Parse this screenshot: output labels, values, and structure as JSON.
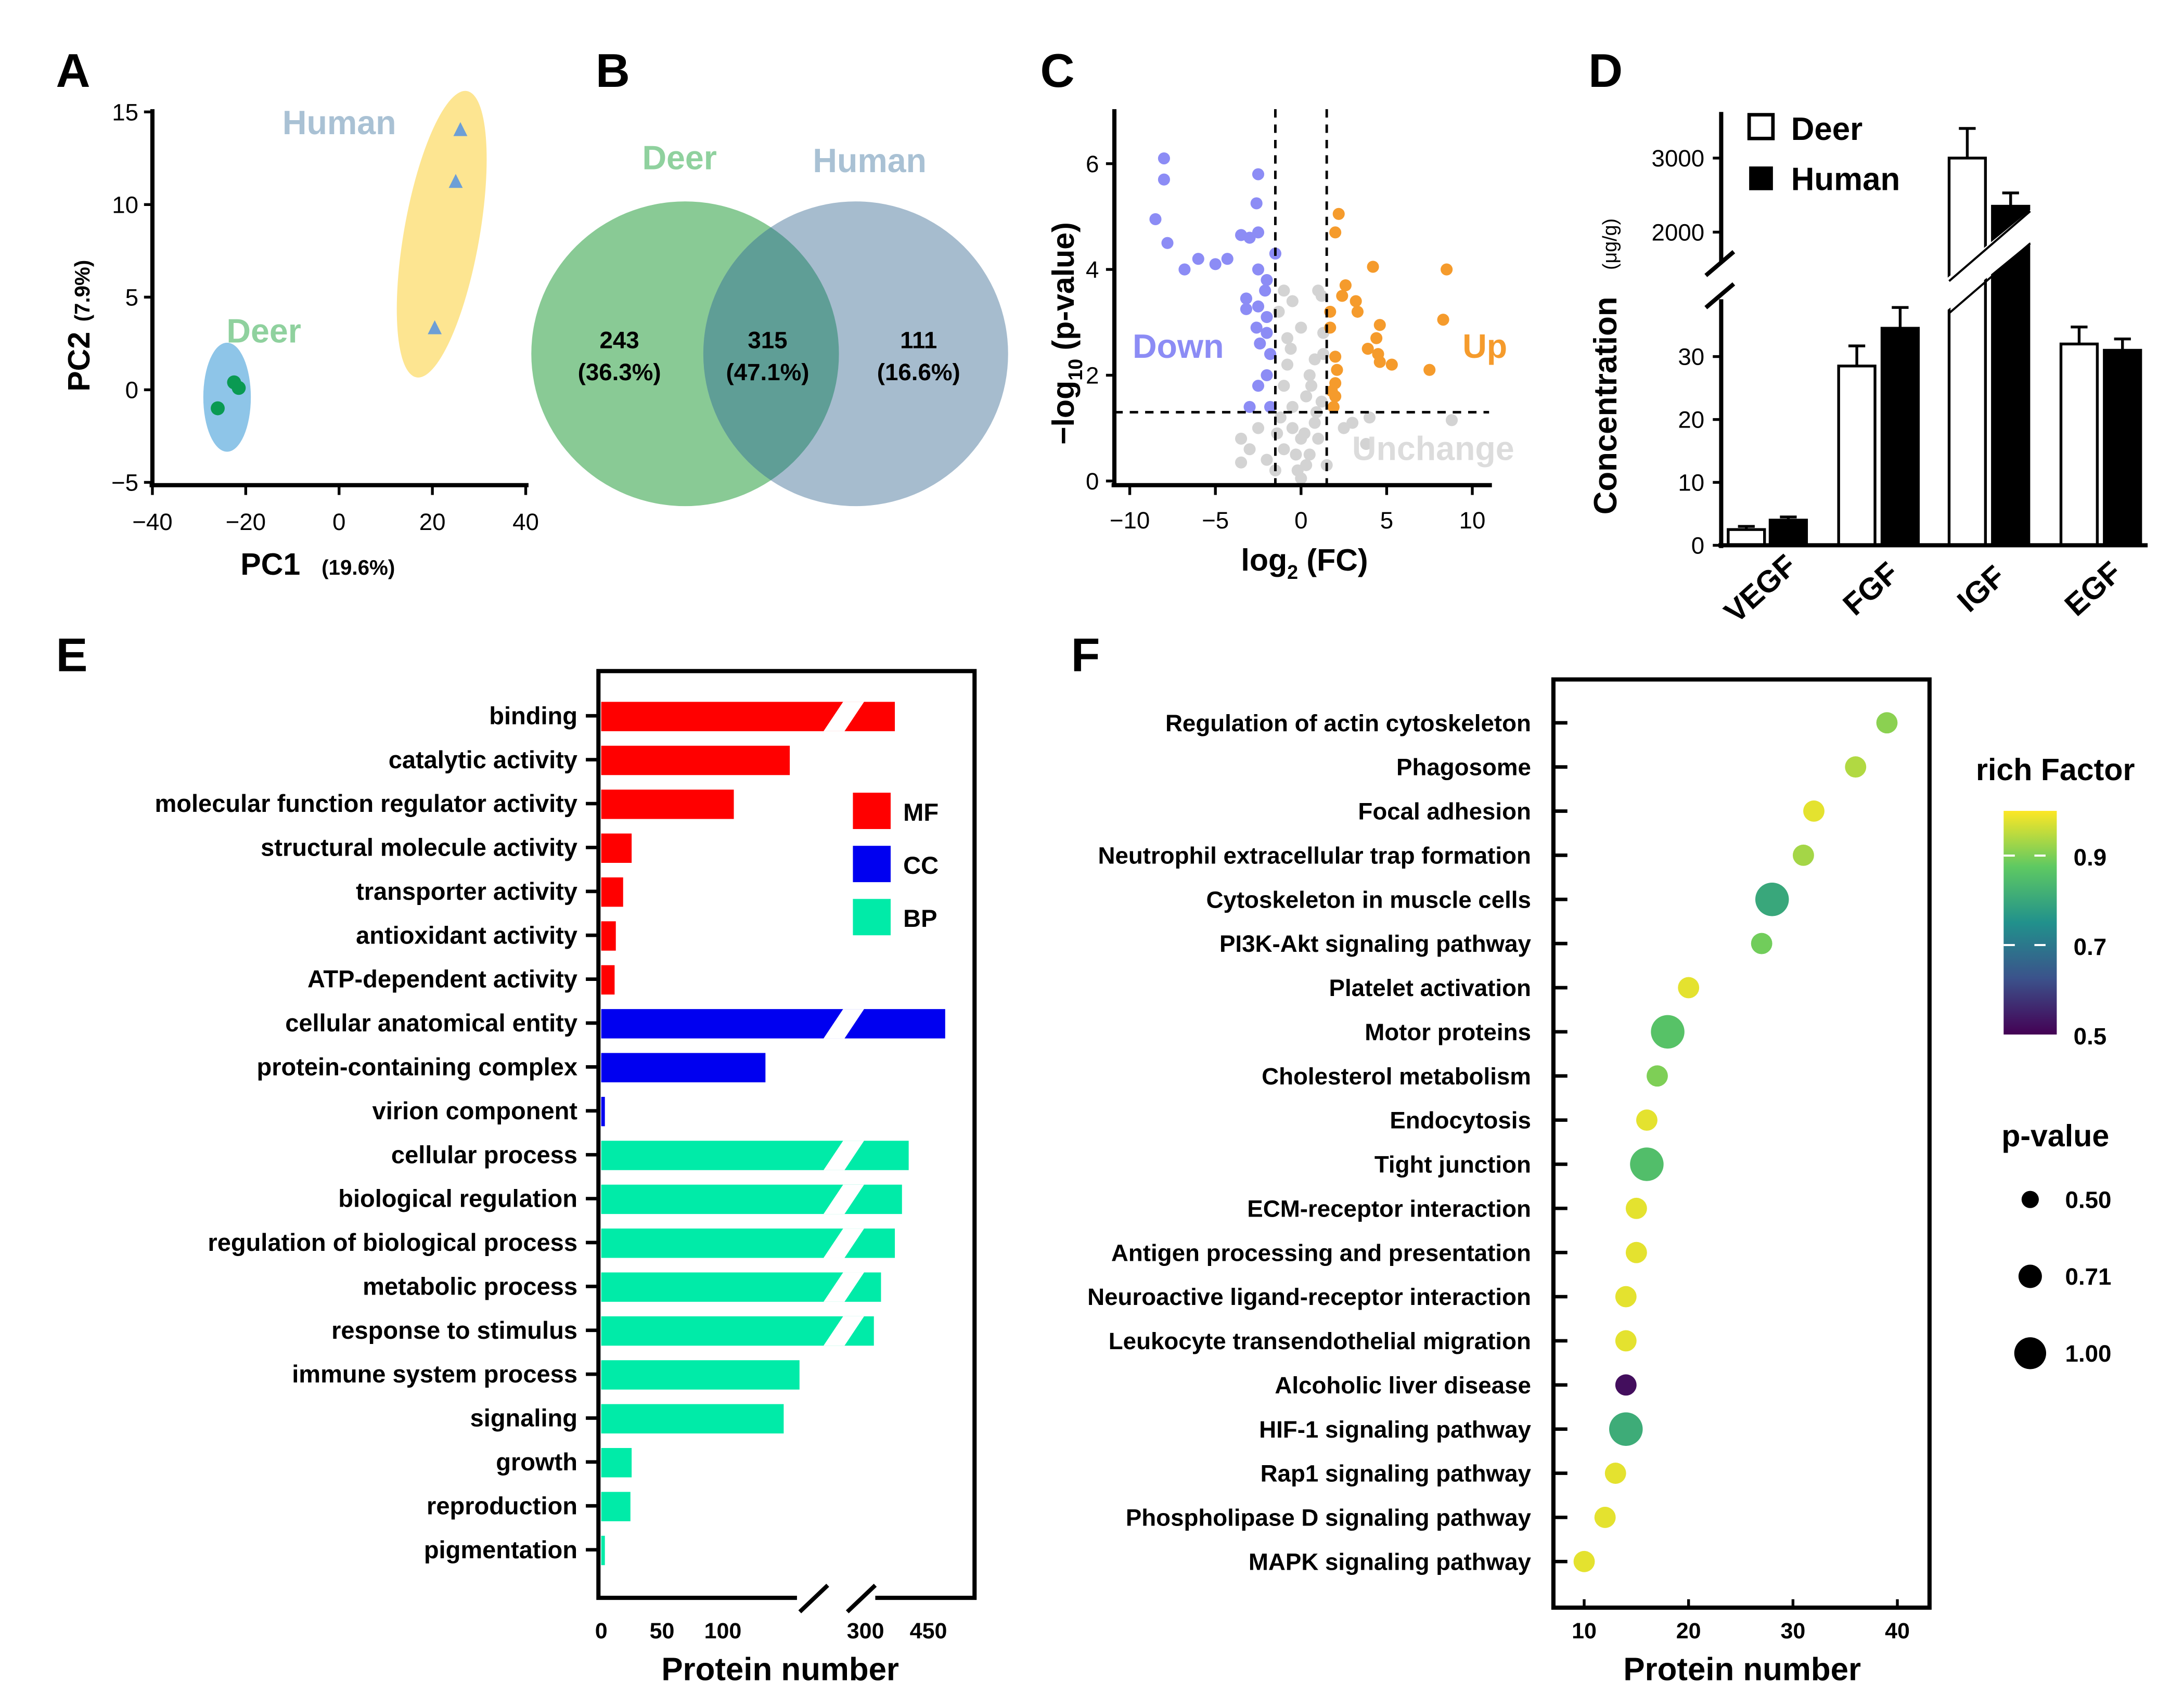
{
  "panel_letters": [
    "A",
    "B",
    "C",
    "D",
    "E",
    "F"
  ],
  "chart_data": [
    {
      "panel": "A",
      "type": "scatter",
      "xlabel": "PC1",
      "xlabel_pct": "(19.6%)",
      "ylabel": "PC2",
      "ylabel_pct": "(7.9%)",
      "xlim": [
        -40,
        40
      ],
      "ylim": [
        -5,
        15
      ],
      "xticks": [
        "-40",
        "-20",
        "0",
        "20",
        "40"
      ],
      "yticks": [
        "-5",
        "0",
        "5",
        "10",
        "15"
      ],
      "groups": [
        {
          "name": "Deer",
          "label_color": "#8fd19e",
          "marker": "circle",
          "marker_color": "#0a9a52",
          "ellipse_color": "#8ec5e8",
          "points": [
            [
              -22.5,
              0.4
            ],
            [
              -21.5,
              0.1
            ],
            [
              -26,
              -1.0
            ]
          ]
        },
        {
          "name": "Human",
          "label_color": "#a9c1d4",
          "marker": "triangle",
          "marker_color": "#6d9fd6",
          "ellipse_color": "#fde591",
          "points": [
            [
              26,
              14.0
            ],
            [
              25,
              11.2
            ],
            [
              20.5,
              3.3
            ]
          ]
        }
      ]
    },
    {
      "panel": "B",
      "type": "venn",
      "sets": [
        {
          "name": "Deer",
          "color": "#7cc48a",
          "label_color": "#8fd19e"
        },
        {
          "name": "Human",
          "color": "#97b0c6",
          "label_color": "#a9c1d4"
        }
      ],
      "regions": [
        {
          "label": "Deer only",
          "count": "243",
          "pct": "(36.3%)"
        },
        {
          "label": "Shared",
          "count": "315",
          "pct": "(47.1%)"
        },
        {
          "label": "Human only",
          "count": "111",
          "pct": "(16.6%)"
        }
      ]
    },
    {
      "panel": "C",
      "type": "scatter",
      "xlabel": "log2 (FC)",
      "ylabel": "-log10 (p-value)",
      "xlim": [
        -11,
        11
      ],
      "ylim": [
        0,
        7
      ],
      "xticks": [
        "-10",
        "-5",
        "0",
        "5",
        "10"
      ],
      "yticks": [
        "0",
        "2",
        "4",
        "6"
      ],
      "thresholds": {
        "log2fc": 1.5,
        "neg_log10_p": 1.3
      },
      "series": [
        {
          "name": "Down",
          "color": "#8c8cf5",
          "points": [
            [
              -8,
              6.1
            ],
            [
              -8,
              5.7
            ],
            [
              -8.5,
              4.95
            ],
            [
              -7.8,
              4.5
            ],
            [
              -6.8,
              4.0
            ],
            [
              -6,
              4.2
            ],
            [
              -5,
              4.1
            ],
            [
              -4.3,
              4.2
            ],
            [
              -3.5,
              4.65
            ],
            [
              -3,
              4.6
            ],
            [
              -2.5,
              4.7
            ],
            [
              -2.5,
              5.8
            ],
            [
              -2.6,
              5.25
            ],
            [
              -1.5,
              4.3
            ],
            [
              -2.5,
              4.0
            ],
            [
              -2,
              3.8
            ],
            [
              -2.1,
              3.6
            ],
            [
              -3.2,
              3.45
            ],
            [
              -3.2,
              3.25
            ],
            [
              -2.5,
              3.3
            ],
            [
              -2,
              3.1
            ],
            [
              -2.6,
              2.9
            ],
            [
              -2,
              2.8
            ],
            [
              -2.4,
              2.6
            ],
            [
              -1.8,
              2.4
            ],
            [
              -2,
              2.0
            ],
            [
              -2.5,
              1.8
            ],
            [
              -3,
              1.4
            ],
            [
              -1.8,
              1.4
            ]
          ]
        },
        {
          "name": "Up",
          "color": "#f59b2c",
          "points": [
            [
              2.2,
              5.05
            ],
            [
              2,
              4.7
            ],
            [
              4.2,
              4.05
            ],
            [
              8.5,
              4.0
            ],
            [
              2.6,
              3.7
            ],
            [
              2.4,
              3.5
            ],
            [
              3.2,
              3.4
            ],
            [
              3.3,
              3.2
            ],
            [
              1.7,
              3.2
            ],
            [
              8.3,
              3.05
            ],
            [
              4.6,
              2.95
            ],
            [
              1.7,
              2.9
            ],
            [
              4.4,
              2.7
            ],
            [
              3.9,
              2.5
            ],
            [
              4.5,
              2.4
            ],
            [
              4.6,
              2.25
            ],
            [
              5.3,
              2.2
            ],
            [
              7.5,
              2.1
            ],
            [
              2,
              2.35
            ],
            [
              2.1,
              2.1
            ],
            [
              2,
              1.85
            ],
            [
              2,
              1.6
            ],
            [
              1.9,
              1.4
            ],
            [
              1.8,
              1.7
            ]
          ]
        },
        {
          "name": "Unchange",
          "color": "#d3d3d3",
          "points": [
            [
              -1,
              3.6
            ],
            [
              -0.5,
              3.4
            ],
            [
              -1.3,
              3.2
            ],
            [
              0,
              2.9
            ],
            [
              -0.8,
              2.7
            ],
            [
              1.3,
              2.8
            ],
            [
              1,
              3.6
            ],
            [
              1.3,
              2.4
            ],
            [
              -0.8,
              2.2
            ],
            [
              0.5,
              2.0
            ],
            [
              -1,
              1.8
            ],
            [
              0.3,
              1.6
            ],
            [
              1.2,
              1.5
            ],
            [
              0.8,
              1.1
            ],
            [
              -0.5,
              1.0
            ],
            [
              0,
              0.8
            ],
            [
              0.5,
              0.5
            ],
            [
              -0.2,
              0.2
            ],
            [
              0,
              0.05
            ],
            [
              0.3,
              0.3
            ],
            [
              -1,
              0.6
            ],
            [
              1,
              0.8
            ],
            [
              -3.5,
              0.8
            ],
            [
              -3.5,
              0.35
            ],
            [
              -2.5,
              1.0
            ],
            [
              -3,
              0.6
            ],
            [
              -2,
              0.4
            ],
            [
              2.5,
              1.0
            ],
            [
              3,
              1.1
            ],
            [
              4,
              1.2
            ],
            [
              3.8,
              0.7
            ],
            [
              8.8,
              1.15
            ],
            [
              -1.5,
              0.2
            ],
            [
              1.5,
              0.3
            ],
            [
              -0.5,
              1.4
            ],
            [
              0.8,
              2.3
            ],
            [
              -1.2,
              1.2
            ],
            [
              0.2,
              0.9
            ],
            [
              -0.3,
              0.5
            ],
            [
              0.6,
              1.8
            ],
            [
              1.2,
              3.5
            ],
            [
              -0.6,
              2.5
            ],
            [
              0.9,
              1.3
            ],
            [
              -1.4,
              0.9
            ]
          ]
        }
      ]
    },
    {
      "panel": "D",
      "type": "bar",
      "ylabel": "Concentration",
      "yunit": "(μg/g)",
      "categories": [
        "VEGF",
        "FGF",
        "IGF",
        "EGF"
      ],
      "yticks_lower": [
        "0",
        "10",
        "20",
        "30"
      ],
      "yticks_upper": [
        "2000",
        "3000"
      ],
      "axis_break": [
        37,
        1400
      ],
      "series": [
        {
          "name": "Deer",
          "color": "#ffffff",
          "values": [
            2.5,
            28.5,
            3000,
            32
          ],
          "errors": [
            0.5,
            3.2,
            400,
            2.7
          ]
        },
        {
          "name": "Human",
          "color": "#000000",
          "values": [
            4,
            34.5,
            2350,
            31
          ],
          "errors": [
            0.5,
            3.3,
            180,
            1.8
          ]
        }
      ]
    },
    {
      "panel": "E",
      "type": "bar",
      "orientation": "horizontal",
      "xlabel": "Protein number",
      "xticks": [
        "0",
        "50",
        "100",
        "300",
        "450"
      ],
      "axis_break": [
        170,
        250
      ],
      "legend": [
        {
          "name": "MF",
          "color": "#ff0000"
        },
        {
          "name": "CC",
          "color": "#0000f0"
        },
        {
          "name": "BP",
          "color": "#00eba8"
        }
      ],
      "categories": [
        "binding",
        "catalytic activity",
        "molecular function regulator activity",
        "structural molecule activity",
        "transporter activity",
        "antioxidant activity",
        "ATP-dependent activity",
        "cellular anatomical entity",
        "protein-containing complex",
        "virion component",
        "cellular process",
        "biological regulation",
        "regulation of biological process",
        "metabolic process",
        "response to stimulus",
        "immune system process",
        "signaling",
        "growth",
        "reproduction",
        "pigmentation"
      ],
      "groups": [
        "MF",
        "MF",
        "MF",
        "MF",
        "MF",
        "MF",
        "MF",
        "CC",
        "CC",
        "CC",
        "BP",
        "BP",
        "BP",
        "BP",
        "BP",
        "BP",
        "BP",
        "BP",
        "BP",
        "BP"
      ],
      "values": [
        370,
        155,
        109,
        25,
        18,
        12,
        11,
        490,
        135,
        3,
        403,
        387,
        370,
        337,
        320,
        163,
        150,
        25,
        24,
        3
      ]
    },
    {
      "panel": "F",
      "type": "scatter",
      "subtype": "bubble",
      "xlabel": "Protein number",
      "xlim": [
        7,
        43
      ],
      "xticks": [
        "10",
        "20",
        "30",
        "40"
      ],
      "color_legend_title": "rich Factor",
      "color_ticks": [
        "0.9",
        "0.7",
        "0.5"
      ],
      "size_legend_title": "p-value",
      "size_ticks": [
        "0.50",
        "0.71",
        "1.00"
      ],
      "categories": [
        "Regulation of actin cytoskeleton",
        "Phagosome",
        "Focal adhesion",
        "Neutrophil extracellular trap formation",
        "Cytoskeleton in muscle cells",
        "PI3K-Akt signaling pathway",
        "Platelet activation",
        "Motor proteins",
        "Cholesterol metabolism",
        "Endocytosis",
        "Tight junction",
        "ECM-receptor interaction",
        "Antigen processing and presentation",
        "Neuroactive ligand-receptor interaction",
        "Leukocyte transendothelial migration",
        "Alcoholic liver disease",
        "HIF-1 signaling pathway",
        "Rap1 signaling pathway",
        "Phospholipase D signaling pathway",
        "MAPK signaling pathway"
      ],
      "protein_number": [
        39,
        36,
        32,
        31,
        28,
        27,
        20,
        18,
        17,
        16,
        16,
        15,
        15,
        14,
        14,
        14,
        14,
        13,
        12,
        10
      ],
      "rich_factor": [
        0.91,
        0.94,
        0.98,
        0.93,
        0.8,
        0.89,
        0.98,
        0.86,
        0.9,
        0.98,
        0.85,
        0.98,
        0.98,
        0.98,
        0.98,
        0.52,
        0.81,
        0.98,
        0.98,
        0.98
      ],
      "p_value": [
        0.6,
        0.6,
        0.6,
        0.6,
        1.0,
        0.6,
        0.6,
        1.0,
        0.6,
        0.6,
        1.0,
        0.6,
        0.6,
        0.6,
        0.6,
        0.6,
        1.0,
        0.6,
        0.6,
        0.6
      ]
    }
  ]
}
